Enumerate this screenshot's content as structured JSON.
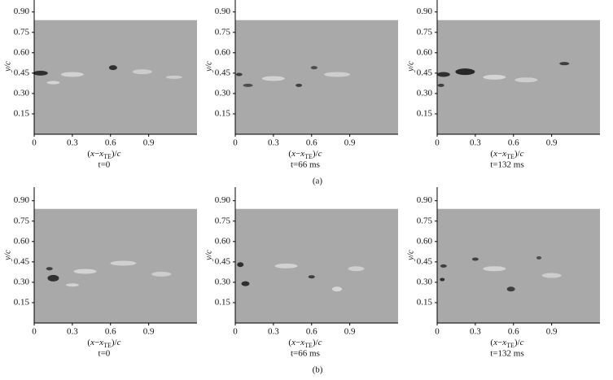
{
  "axes": {
    "x_label": {
      "open": "(",
      "var": "x",
      "minus": "−",
      "sym": "x",
      "sub": "TE",
      "close": ")/",
      "den": "c"
    },
    "y_label": "y/c",
    "xlim": [
      0,
      1.28
    ],
    "ylim": [
      0,
      1
    ],
    "xticks": [
      0,
      0.3,
      0.6,
      0.9
    ],
    "yticks": [
      {
        "value": 0.15,
        "label": "0.15"
      },
      {
        "value": 0.3,
        "label": "0.30"
      },
      {
        "value": 0.45,
        "label": "0.45"
      },
      {
        "value": 0.6,
        "label": "0.60"
      },
      {
        "value": 0.75,
        "label": "0.75"
      },
      {
        "value": 0.9,
        "label": "0.90"
      }
    ]
  },
  "rows": [
    {
      "caption": "(a)",
      "panels": [
        {
          "time": "t=0"
        },
        {
          "time": "t=66 ms"
        },
        {
          "time": "t=132 ms"
        }
      ]
    },
    {
      "caption": "(b)",
      "panels": [
        {
          "time": "t=0"
        },
        {
          "time": "t=66 ms"
        },
        {
          "time": "t=132 ms"
        }
      ]
    }
  ]
}
